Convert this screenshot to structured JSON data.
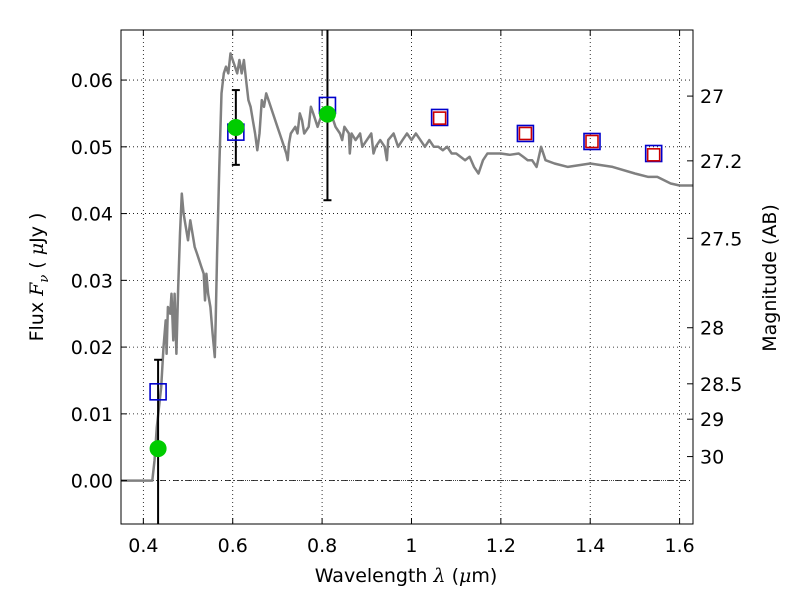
{
  "chart_data": {
    "type": "scatter",
    "title": "",
    "xlabel_prefix": "Wavelength ",
    "xlabel_symbol": "λ",
    "xlabel_unit_open": " (",
    "xlabel_unit_mu": "μ",
    "xlabel_unit_rest": "m)",
    "ylabel_prefix": "Flux ",
    "ylabel_F": "F",
    "ylabel_nu": "ν",
    "ylabel_unit_open": " ( ",
    "ylabel_unit_mu": "μ",
    "ylabel_unit_rest": "Jy )",
    "y2label": "Magnitude (AB)",
    "xlim": [
      0.35,
      1.63
    ],
    "ylim": [
      -0.0065,
      0.0675
    ],
    "grid": true,
    "x_ticks": [
      {
        "value": 0.4,
        "label": "0.4"
      },
      {
        "value": 0.6,
        "label": "0.6"
      },
      {
        "value": 0.8,
        "label": "0.8"
      },
      {
        "value": 1.0,
        "label": "1"
      },
      {
        "value": 1.2,
        "label": "1.2"
      },
      {
        "value": 1.4,
        "label": "1.4"
      },
      {
        "value": 1.6,
        "label": "1.6"
      }
    ],
    "y_ticks": [
      {
        "value": 0.0,
        "label": "0.00"
      },
      {
        "value": 0.01,
        "label": "0.01"
      },
      {
        "value": 0.02,
        "label": "0.02"
      },
      {
        "value": 0.03,
        "label": "0.03"
      },
      {
        "value": 0.04,
        "label": "0.04"
      },
      {
        "value": 0.05,
        "label": "0.05"
      },
      {
        "value": 0.06,
        "label": "0.06"
      }
    ],
    "magnitude_ticks": [
      {
        "flux": 0.0576,
        "label": "27"
      },
      {
        "flux": 0.0479,
        "label": "27.2"
      },
      {
        "flux": 0.0363,
        "label": "27.5"
      },
      {
        "flux": 0.0229,
        "label": "28"
      },
      {
        "flux": 0.0145,
        "label": "28.5"
      },
      {
        "flux": 0.0092,
        "label": "29"
      },
      {
        "flux": 0.0036,
        "label": "30"
      }
    ],
    "zero_line": 0.0,
    "series": [
      {
        "kind": "line",
        "color": "#808080",
        "points": [
          [
            0.35,
            0.0
          ],
          [
            0.39,
            0.0
          ],
          [
            0.42,
            0.0
          ],
          [
            0.425,
            0.003
          ],
          [
            0.43,
            0.008
          ],
          [
            0.44,
            0.014
          ],
          [
            0.445,
            0.02
          ],
          [
            0.45,
            0.024
          ],
          [
            0.452,
            0.019
          ],
          [
            0.455,
            0.026
          ],
          [
            0.46,
            0.025
          ],
          [
            0.463,
            0.028
          ],
          [
            0.467,
            0.021
          ],
          [
            0.47,
            0.028
          ],
          [
            0.474,
            0.019
          ],
          [
            0.478,
            0.029
          ],
          [
            0.482,
            0.037
          ],
          [
            0.486,
            0.043
          ],
          [
            0.49,
            0.04
          ],
          [
            0.495,
            0.038
          ],
          [
            0.5,
            0.036
          ],
          [
            0.505,
            0.039
          ],
          [
            0.51,
            0.037
          ],
          [
            0.515,
            0.035
          ],
          [
            0.52,
            0.034
          ],
          [
            0.525,
            0.033
          ],
          [
            0.53,
            0.032
          ],
          [
            0.535,
            0.031
          ],
          [
            0.538,
            0.027
          ],
          [
            0.541,
            0.031
          ],
          [
            0.545,
            0.028
          ],
          [
            0.55,
            0.026
          ],
          [
            0.555,
            0.022
          ],
          [
            0.56,
            0.0185
          ],
          [
            0.562,
            0.024
          ],
          [
            0.565,
            0.034
          ],
          [
            0.57,
            0.047
          ],
          [
            0.575,
            0.058
          ],
          [
            0.58,
            0.061
          ],
          [
            0.585,
            0.062
          ],
          [
            0.59,
            0.061
          ],
          [
            0.595,
            0.064
          ],
          [
            0.6,
            0.063
          ],
          [
            0.605,
            0.062
          ],
          [
            0.61,
            0.061
          ],
          [
            0.615,
            0.063
          ],
          [
            0.62,
            0.061
          ],
          [
            0.625,
            0.063
          ],
          [
            0.63,
            0.06
          ],
          [
            0.635,
            0.057
          ],
          [
            0.64,
            0.056
          ],
          [
            0.645,
            0.054
          ],
          [
            0.65,
            0.052
          ],
          [
            0.655,
            0.0495
          ],
          [
            0.66,
            0.052
          ],
          [
            0.665,
            0.057
          ],
          [
            0.67,
            0.056
          ],
          [
            0.675,
            0.058
          ],
          [
            0.68,
            0.057
          ],
          [
            0.69,
            0.055
          ],
          [
            0.7,
            0.053
          ],
          [
            0.71,
            0.051
          ],
          [
            0.715,
            0.05
          ],
          [
            0.72,
            0.049
          ],
          [
            0.723,
            0.048
          ],
          [
            0.726,
            0.0505
          ],
          [
            0.73,
            0.052
          ],
          [
            0.74,
            0.053
          ],
          [
            0.745,
            0.052
          ],
          [
            0.75,
            0.055
          ],
          [
            0.755,
            0.054
          ],
          [
            0.76,
            0.052
          ],
          [
            0.77,
            0.053
          ],
          [
            0.775,
            0.056
          ],
          [
            0.78,
            0.055
          ],
          [
            0.79,
            0.053
          ],
          [
            0.8,
            0.055
          ],
          [
            0.81,
            0.054
          ],
          [
            0.82,
            0.055
          ],
          [
            0.83,
            0.053
          ],
          [
            0.84,
            0.052
          ],
          [
            0.845,
            0.051
          ],
          [
            0.85,
            0.053
          ],
          [
            0.86,
            0.052
          ],
          [
            0.862,
            0.049
          ],
          [
            0.866,
            0.052
          ],
          [
            0.875,
            0.051
          ],
          [
            0.885,
            0.052
          ],
          [
            0.89,
            0.05
          ],
          [
            0.9,
            0.051
          ],
          [
            0.91,
            0.052
          ],
          [
            0.915,
            0.049
          ],
          [
            0.92,
            0.05
          ],
          [
            0.93,
            0.051
          ],
          [
            0.94,
            0.05
          ],
          [
            0.945,
            0.048
          ],
          [
            0.948,
            0.051
          ],
          [
            0.96,
            0.052
          ],
          [
            0.97,
            0.05
          ],
          [
            0.98,
            0.051
          ],
          [
            0.99,
            0.052
          ],
          [
            1.0,
            0.051
          ],
          [
            1.01,
            0.052
          ],
          [
            1.02,
            0.051
          ],
          [
            1.03,
            0.05
          ],
          [
            1.04,
            0.051
          ],
          [
            1.05,
            0.05
          ],
          [
            1.06,
            0.05
          ],
          [
            1.07,
            0.0495
          ],
          [
            1.08,
            0.05
          ],
          [
            1.09,
            0.049
          ],
          [
            1.1,
            0.049
          ],
          [
            1.12,
            0.048
          ],
          [
            1.13,
            0.0485
          ],
          [
            1.14,
            0.047
          ],
          [
            1.15,
            0.046
          ],
          [
            1.16,
            0.048
          ],
          [
            1.17,
            0.049
          ],
          [
            1.18,
            0.049
          ],
          [
            1.2,
            0.049
          ],
          [
            1.22,
            0.0488
          ],
          [
            1.24,
            0.049
          ],
          [
            1.25,
            0.0485
          ],
          [
            1.26,
            0.048
          ],
          [
            1.27,
            0.048
          ],
          [
            1.28,
            0.047
          ],
          [
            1.29,
            0.05
          ],
          [
            1.3,
            0.048
          ],
          [
            1.32,
            0.0475
          ],
          [
            1.35,
            0.047
          ],
          [
            1.4,
            0.0475
          ],
          [
            1.45,
            0.047
          ],
          [
            1.5,
            0.046
          ],
          [
            1.53,
            0.0455
          ],
          [
            1.55,
            0.0455
          ],
          [
            1.58,
            0.0445
          ],
          [
            1.6,
            0.0442
          ],
          [
            1.63,
            0.0442
          ]
        ]
      },
      {
        "kind": "squares",
        "name": "model_blue",
        "color": "#0000cc",
        "points": [
          [
            0.433,
            0.0133
          ],
          [
            0.607,
            0.0522
          ],
          [
            0.812,
            0.0562
          ],
          [
            1.063,
            0.0544
          ],
          [
            1.255,
            0.052
          ],
          [
            1.404,
            0.0508
          ],
          [
            1.542,
            0.049
          ]
        ]
      },
      {
        "kind": "squares",
        "name": "model_red",
        "color": "#cc0000",
        "points": [
          [
            1.063,
            0.0543
          ],
          [
            1.255,
            0.052
          ],
          [
            1.404,
            0.0508
          ],
          [
            1.542,
            0.0488
          ]
        ]
      },
      {
        "kind": "points",
        "name": "observed",
        "color": "#00cc00",
        "points": [
          [
            0.433,
            0.0048,
            0.0133
          ],
          [
            0.607,
            0.0529,
            0.0056
          ],
          [
            0.812,
            0.0549,
            0.0129
          ]
        ]
      }
    ]
  }
}
